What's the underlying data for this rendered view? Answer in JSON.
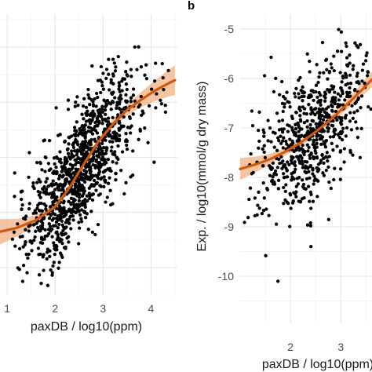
{
  "chart_data": [
    {
      "type": "scatter",
      "panel_label": "",
      "xlabel": "paxDB / log10(ppm)",
      "ylabel": "",
      "xlim": [
        0.85,
        4.55
      ],
      "ylim": [
        -2.5,
        2.6
      ],
      "x_ticks": [
        1,
        2,
        3,
        4
      ],
      "x_tick_labels": [
        "1",
        "2",
        "3",
        "4"
      ],
      "grid": true,
      "point_color": "#000000",
      "fit_color": "#cc5a12",
      "band_color": "#f2b083",
      "point_count": 1100,
      "point_cloud": {
        "x_range": [
          1.1,
          4.4
        ],
        "trend": "positive, steepening above x≈2"
      },
      "fit": {
        "x": [
          0.85,
          1.2,
          1.6,
          2.0,
          2.3,
          2.6,
          2.9,
          3.2,
          3.5,
          3.8,
          4.1,
          4.4,
          4.5
        ],
        "y": [
          -1.35,
          -1.28,
          -1.14,
          -0.9,
          -0.55,
          -0.12,
          0.28,
          0.6,
          0.86,
          1.05,
          1.22,
          1.36,
          1.4
        ],
        "band_halfwidth": [
          0.23,
          0.16,
          0.09,
          0.07,
          0.06,
          0.06,
          0.07,
          0.08,
          0.1,
          0.14,
          0.19,
          0.25,
          0.27
        ]
      }
    },
    {
      "type": "scatter",
      "panel_label": "b",
      "xlabel": "paxDB / log10(ppm)",
      "ylabel": "Exp. / log10(mmol/g dry mass)",
      "xlim": [
        1.0,
        3.62
      ],
      "ylim": [
        -10.95,
        -4.7
      ],
      "x_ticks": [
        2,
        3
      ],
      "x_tick_labels": [
        "2",
        "3"
      ],
      "y_ticks": [
        -10,
        -9,
        -8,
        -7,
        -6,
        -5
      ],
      "y_tick_labels": [
        "-10",
        "-9",
        "-8",
        "-7",
        "-6",
        "-5"
      ],
      "grid": true,
      "point_color": "#000000",
      "fit_color": "#cc5a12",
      "band_color": "#f2b083",
      "point_count": 650,
      "point_cloud": {
        "x_range": [
          1.05,
          3.6
        ],
        "trend": "positive"
      },
      "fit": {
        "x": [
          1.0,
          1.3,
          1.6,
          1.9,
          2.2,
          2.5,
          2.8,
          3.1,
          3.4,
          3.62
        ],
        "y": [
          -7.83,
          -7.74,
          -7.63,
          -7.48,
          -7.3,
          -7.08,
          -6.83,
          -6.55,
          -6.25,
          -6.02
        ],
        "band_halfwidth": [
          0.22,
          0.16,
          0.11,
          0.08,
          0.07,
          0.07,
          0.08,
          0.1,
          0.13,
          0.16
        ]
      }
    }
  ]
}
